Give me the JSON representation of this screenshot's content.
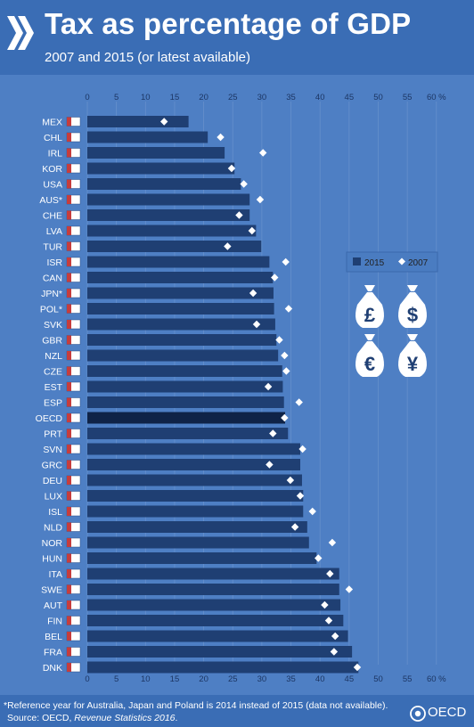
{
  "header": {
    "title": "Tax as percentage of GDP",
    "subtitle": "2007 and 2015 (or latest available)"
  },
  "footer": {
    "footnote": "*Reference year for Australia, Japan and Poland is 2014 instead of 2015 (data not available).",
    "source_prefix": "Source: OECD, ",
    "source_publication": "Revenue Statistics 2016",
    "source_suffix": ".",
    "logo_text": "OECD"
  },
  "colors": {
    "background": "#3a6db5",
    "plot_background": "#4e7fc4",
    "bar_2015": "#1f3f73",
    "bar_oecd": "#0f2347",
    "marker_2007": "#ffffff",
    "axis_text": "#1c3664",
    "legend_box": "#4a7cc1"
  },
  "icons": [
    "pound-money-bag-icon",
    "dollar-money-bag-icon",
    "euro-money-bag-icon",
    "yen-money-bag-icon"
  ],
  "chart_data": {
    "type": "bar",
    "orientation": "horizontal",
    "title": "Tax as percentage of GDP",
    "subtitle": "2007 and 2015 (or latest available)",
    "unit": "%",
    "xlim": [
      0,
      60
    ],
    "xticks": [
      "0",
      "5",
      "10",
      "15",
      "20",
      "25",
      "30",
      "35",
      "40",
      "45",
      "50",
      "55",
      "60"
    ],
    "grid": true,
    "legend_position": "right",
    "categories": [
      "MEX",
      "CHL",
      "IRL",
      "KOR",
      "USA",
      "AUS*",
      "CHE",
      "LVA",
      "TUR",
      "ISR",
      "CAN",
      "JPN*",
      "POL*",
      "SVK",
      "GBR",
      "NZL",
      "CZE",
      "EST",
      "ESP",
      "OECD",
      "PRT",
      "SVN",
      "GRC",
      "DEU",
      "LUX",
      "ISL",
      "NLD",
      "NOR",
      "HUN",
      "ITA",
      "SWE",
      "AUT",
      "FIN",
      "BEL",
      "FRA",
      "DNK"
    ],
    "highlight_category": "OECD",
    "series": [
      {
        "name": "2015",
        "marker": "bar",
        "values": [
          17.4,
          20.7,
          23.6,
          25.3,
          26.4,
          27.9,
          27.9,
          29.0,
          29.9,
          31.3,
          31.9,
          32.0,
          32.1,
          32.3,
          32.5,
          32.8,
          33.5,
          33.6,
          33.8,
          34.0,
          34.5,
          36.6,
          36.6,
          36.9,
          37.1,
          37.1,
          37.8,
          38.1,
          39.4,
          43.3,
          43.3,
          43.5,
          44.0,
          44.8,
          45.5,
          46.6
        ]
      },
      {
        "name": "2007",
        "marker": "diamond",
        "values": [
          13.2,
          22.9,
          30.2,
          24.8,
          26.9,
          29.7,
          26.1,
          28.3,
          24.1,
          34.1,
          32.2,
          28.5,
          34.6,
          29.1,
          33.0,
          33.9,
          34.2,
          31.1,
          36.4,
          33.9,
          31.9,
          37.0,
          31.3,
          34.9,
          36.6,
          38.7,
          35.7,
          42.1,
          39.7,
          41.7,
          45.0,
          40.8,
          41.5,
          42.6,
          42.4,
          46.4
        ]
      }
    ]
  }
}
